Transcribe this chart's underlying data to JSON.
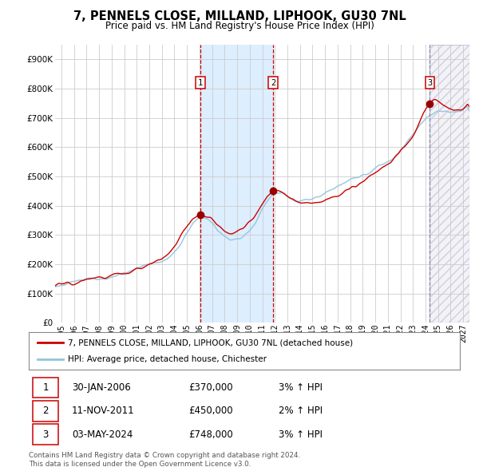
{
  "title": "7, PENNELS CLOSE, MILLAND, LIPHOOK, GU30 7NL",
  "subtitle": "Price paid vs. HM Land Registry's House Price Index (HPI)",
  "ylim": [
    0,
    950000
  ],
  "yticks": [
    0,
    100000,
    200000,
    300000,
    400000,
    500000,
    600000,
    700000,
    800000,
    900000
  ],
  "ytick_labels": [
    "£0",
    "£100K",
    "£200K",
    "£300K",
    "£400K",
    "£500K",
    "£600K",
    "£700K",
    "£800K",
    "£900K"
  ],
  "xstart": 1994.5,
  "xend": 2027.5,
  "xticks": [
    1995,
    1996,
    1997,
    1998,
    1999,
    2000,
    2001,
    2002,
    2003,
    2004,
    2005,
    2006,
    2007,
    2008,
    2009,
    2010,
    2011,
    2012,
    2013,
    2014,
    2015,
    2016,
    2017,
    2018,
    2019,
    2020,
    2021,
    2022,
    2023,
    2024,
    2025,
    2026,
    2027
  ],
  "sale1_x": 2006.08,
  "sale1_y": 370000,
  "sale1_label": "1",
  "sale1_date": "30-JAN-2006",
  "sale1_price": "£370,000",
  "sale1_hpi": "3% ↑ HPI",
  "sale2_x": 2011.87,
  "sale2_y": 450000,
  "sale2_label": "2",
  "sale2_date": "11-NOV-2011",
  "sale2_price": "£450,000",
  "sale2_hpi": "2% ↑ HPI",
  "sale3_x": 2024.34,
  "sale3_y": 748000,
  "sale3_label": "3",
  "sale3_date": "03-MAY-2024",
  "sale3_price": "£748,000",
  "sale3_hpi": "3% ↑ HPI",
  "line_color_hpi": "#92c5de",
  "line_color_price": "#cc0000",
  "dot_color": "#990000",
  "shade_color": "#ddeeff",
  "grid_color": "#cccccc",
  "bg_color": "#ffffff",
  "legend_label1": "7, PENNELS CLOSE, MILLAND, LIPHOOK, GU30 7NL (detached house)",
  "legend_label2": "HPI: Average price, detached house, Chichester",
  "footnote": "Contains HM Land Registry data © Crown copyright and database right 2024.\nThis data is licensed under the Open Government Licence v3.0."
}
